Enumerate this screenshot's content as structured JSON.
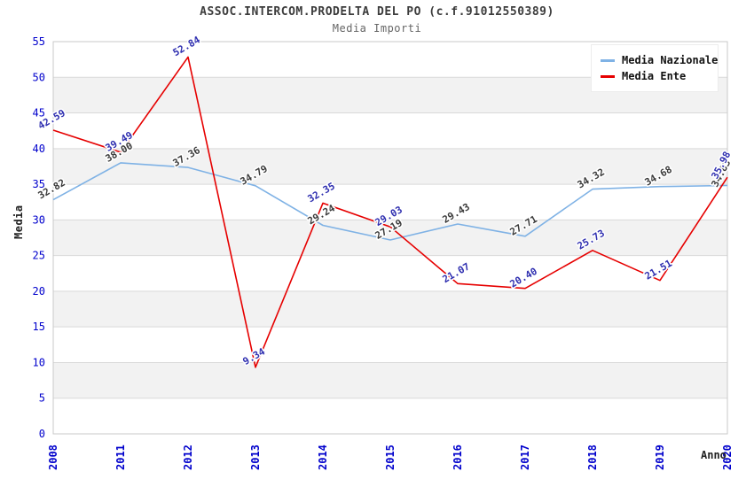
{
  "header": {
    "title": "ASSOC.INTERCOM.PRODELTA DEL PO (c.f.91012550389)",
    "subtitle": "Media Importi"
  },
  "axes": {
    "y_label": "Media",
    "x_label": "Anno",
    "tick_color": "#0000cc"
  },
  "legend": {
    "items": [
      {
        "label": "Media Nazionale",
        "color": "#7fb2e5"
      },
      {
        "label": "Media Ente",
        "color": "#e60000"
      }
    ]
  },
  "colors": {
    "band": "#f2f2f2",
    "grid": "#d9d9d9",
    "border": "#c9c9c9",
    "title": "#3c3c3c",
    "subtitle": "#666666"
  },
  "chart_data": {
    "type": "line",
    "title": "ASSOC.INTERCOM.PRODELTA DEL PO (c.f.91012550389)",
    "subtitle": "Media Importi",
    "xlabel": "Anno",
    "ylabel": "Media",
    "categories": [
      "2008",
      "2011",
      "2012",
      "2013",
      "2014",
      "2015",
      "2016",
      "2017",
      "2018",
      "2019",
      "2020"
    ],
    "series": [
      {
        "name": "Media Nazionale",
        "color": "#7fb2e5",
        "label_color": "#3a3a3a",
        "values": [
          32.82,
          38.0,
          37.36,
          34.79,
          29.24,
          27.19,
          29.43,
          27.71,
          34.32,
          34.68,
          34.83
        ]
      },
      {
        "name": "Media Ente",
        "color": "#e60000",
        "label_color": "#2f2fb0",
        "values": [
          42.59,
          39.49,
          52.84,
          9.34,
          32.35,
          29.03,
          21.07,
          20.4,
          25.73,
          21.51,
          35.98
        ]
      }
    ],
    "ylim": [
      0,
      55
    ],
    "ytick_step": 5,
    "grid": true,
    "alternating_bands": true,
    "legend_position": "top-right",
    "data_labels": "two-decimals, rotated -30deg"
  }
}
